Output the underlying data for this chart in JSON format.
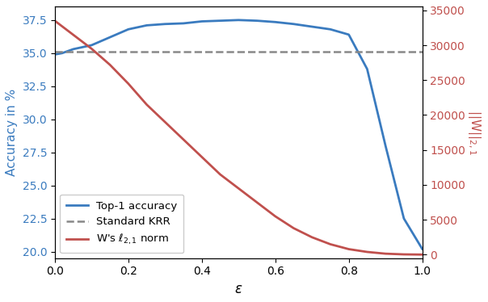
{
  "title": "",
  "xlabel": "$\\varepsilon$",
  "ylabel_left": "Accuracy in %",
  "ylabel_right": "||W||$_{2,1}$",
  "left_color": "#3a7bbf",
  "right_color": "#c0504d",
  "dashed_color": "#888888",
  "dashed_value": 35.1,
  "xlim": [
    0.0,
    1.0
  ],
  "ylim_left": [
    19.5,
    38.5
  ],
  "ylim_right": [
    -500,
    35500
  ],
  "accuracy_x": [
    0.0,
    0.02,
    0.05,
    0.1,
    0.15,
    0.2,
    0.25,
    0.3,
    0.35,
    0.4,
    0.45,
    0.5,
    0.55,
    0.6,
    0.65,
    0.7,
    0.75,
    0.8,
    0.85,
    0.9,
    0.95,
    1.0
  ],
  "accuracy_y": [
    34.9,
    35.0,
    35.3,
    35.6,
    36.2,
    36.8,
    37.1,
    37.2,
    37.25,
    37.4,
    37.45,
    37.5,
    37.45,
    37.35,
    37.2,
    37.0,
    36.8,
    36.4,
    33.8,
    28.0,
    22.5,
    20.2
  ],
  "norm_x": [
    0.0,
    0.05,
    0.1,
    0.15,
    0.2,
    0.25,
    0.3,
    0.35,
    0.4,
    0.45,
    0.5,
    0.55,
    0.6,
    0.65,
    0.7,
    0.75,
    0.8,
    0.85,
    0.9,
    0.95,
    1.0
  ],
  "norm_y": [
    33500,
    31500,
    29500,
    27200,
    24500,
    21500,
    19000,
    16500,
    14000,
    11500,
    9500,
    7500,
    5500,
    3800,
    2500,
    1500,
    800,
    400,
    150,
    50,
    20
  ],
  "legend_labels": [
    "Top-1 accuracy",
    "Standard KRR",
    "W's $\\ell_{2,1}$ norm"
  ],
  "yticks_left": [
    20.0,
    22.5,
    25.0,
    27.5,
    30.0,
    32.5,
    35.0,
    37.5
  ],
  "yticks_right": [
    0,
    5000,
    10000,
    15000,
    20000,
    25000,
    30000,
    35000
  ],
  "xticks": [
    0.0,
    0.2,
    0.4,
    0.6,
    0.8,
    1.0
  ]
}
